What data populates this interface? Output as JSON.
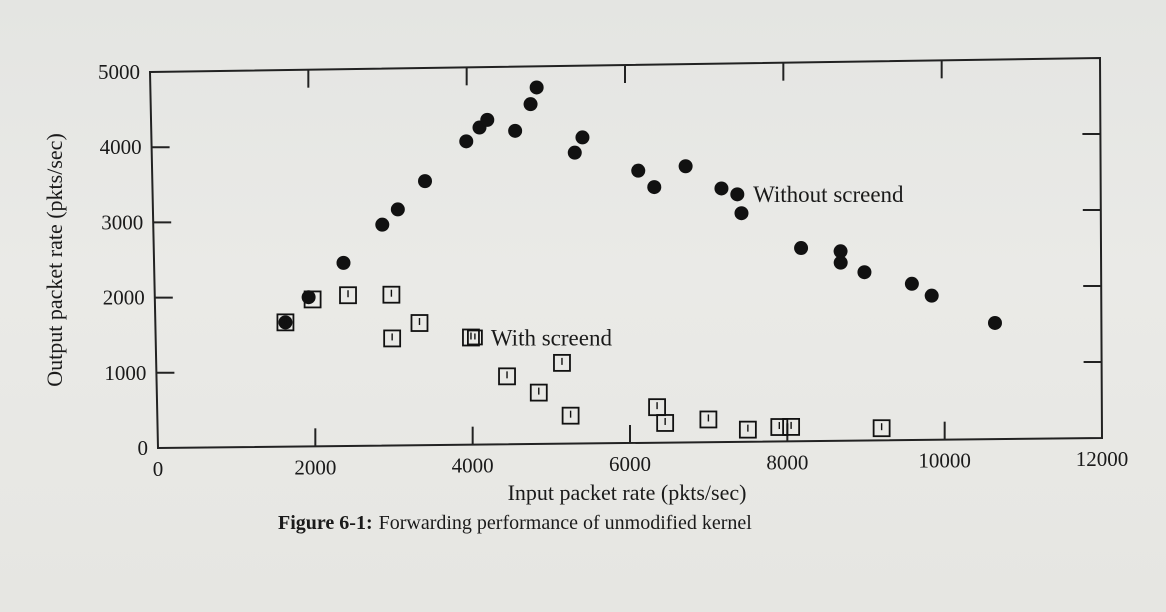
{
  "chart_data": {
    "type": "scatter",
    "xlabel": "Input packet rate (pkts/sec)",
    "ylabel": "Output packet rate (pkts/sec)",
    "xlim": [
      0,
      12000
    ],
    "ylim": [
      0,
      5000
    ],
    "xticks": [
      0,
      2000,
      4000,
      6000,
      8000,
      10000,
      12000
    ],
    "yticks": [
      0,
      1000,
      2000,
      3000,
      4000,
      5000
    ],
    "grid": false,
    "series": [
      {
        "name": "Without screend",
        "marker": "filled-circle",
        "color": "#111111",
        "points": [
          [
            1650,
            1650
          ],
          [
            1950,
            1980
          ],
          [
            2400,
            2430
          ],
          [
            2900,
            2930
          ],
          [
            3100,
            3130
          ],
          [
            3450,
            3500
          ],
          [
            3980,
            4020
          ],
          [
            4150,
            4200
          ],
          [
            4250,
            4300
          ],
          [
            4600,
            4150
          ],
          [
            4800,
            4500
          ],
          [
            4880,
            4720
          ],
          [
            5350,
            3850
          ],
          [
            5450,
            4050
          ],
          [
            6150,
            3600
          ],
          [
            6350,
            3380
          ],
          [
            6750,
            3650
          ],
          [
            7200,
            3350
          ],
          [
            7400,
            3270
          ],
          [
            7450,
            3020
          ],
          [
            8200,
            2550
          ],
          [
            8700,
            2500
          ],
          [
            8700,
            2350
          ],
          [
            9000,
            2220
          ],
          [
            9600,
            2060
          ],
          [
            9850,
            1900
          ],
          [
            10650,
            1530
          ]
        ]
      },
      {
        "name": "With screend",
        "marker": "open-square",
        "color": "#111111",
        "points": [
          [
            1650,
            1650
          ],
          [
            2000,
            1950
          ],
          [
            2450,
            2000
          ],
          [
            3000,
            2000
          ],
          [
            3000,
            1420
          ],
          [
            3350,
            1620
          ],
          [
            4000,
            1420
          ],
          [
            4450,
            900
          ],
          [
            4850,
            680
          ],
          [
            5150,
            1070
          ],
          [
            5250,
            370
          ],
          [
            6350,
            470
          ],
          [
            6450,
            260
          ],
          [
            7000,
            300
          ],
          [
            7500,
            160
          ],
          [
            7900,
            190
          ],
          [
            8050,
            190
          ],
          [
            9200,
            160
          ]
        ]
      }
    ],
    "annotations": [
      {
        "text": "Without screend",
        "x": 7600,
        "y": 3270
      },
      {
        "text": "With screend",
        "x": 4050,
        "y": 1420
      }
    ]
  },
  "caption": {
    "label": "Figure 6-1:",
    "text": "Forwarding performance of unmodified kernel"
  }
}
